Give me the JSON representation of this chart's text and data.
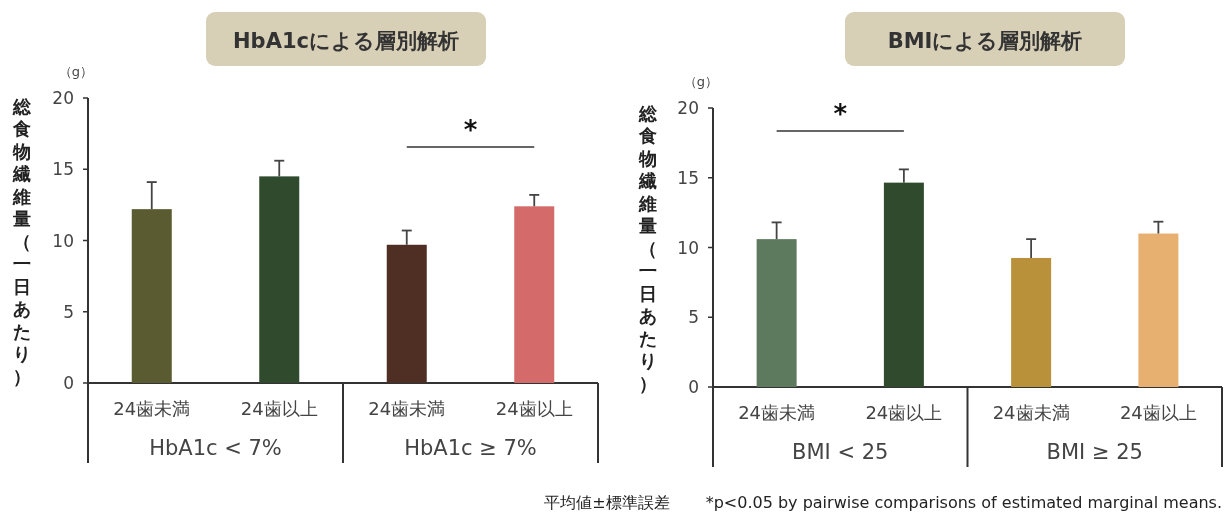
{
  "chart_data": [
    {
      "type": "bar",
      "title": "HbA1cによる層別解析",
      "ylabel": "総食物繊維量（一日あたり）",
      "categories": [
        "HbA1c < 7%",
        "HbA1c ≥ 7%"
      ],
      "ylim": [
        0,
        20
      ],
      "yticks": [
        0,
        5,
        10,
        15,
        20
      ],
      "series": [
        {
          "name": "24歯未満",
          "colors": [
            "#5a5b30",
            "#4f2f24"
          ],
          "values": [
            12.2,
            9.7
          ],
          "errors": [
            1.9,
            1.0
          ]
        },
        {
          "name": "24歯以上",
          "colors": [
            "#2f4a2c",
            "#d46a6a"
          ],
          "values": [
            14.5,
            12.4
          ],
          "errors": [
            1.1,
            0.8
          ]
        }
      ],
      "annotations": [
        "（g）",
        "*"
      ]
    },
    {
      "type": "bar",
      "title": "BMIによる層別解析",
      "ylabel": "総食物繊維量（一日あたり）",
      "categories": [
        "BMI < 25",
        "BMI ≥ 25"
      ],
      "ylim": [
        0,
        20
      ],
      "yticks": [
        0,
        5,
        10,
        15,
        20
      ],
      "series": [
        {
          "name": "24歯未満",
          "colors": [
            "#5e7a5e",
            "#b8913a"
          ],
          "values": [
            10.6,
            9.25
          ],
          "errors": [
            1.2,
            1.35
          ]
        },
        {
          "name": "24歯以上",
          "colors": [
            "#2f4a2c",
            "#e8b070"
          ],
          "values": [
            14.65,
            11.0
          ],
          "errors": [
            0.95,
            0.85
          ]
        }
      ],
      "annotations": [
        "（g）",
        "*",
        "平均値±標準誤差",
        "*p<0.05 by pairwise comparisons of estimated marginal means."
      ]
    }
  ]
}
